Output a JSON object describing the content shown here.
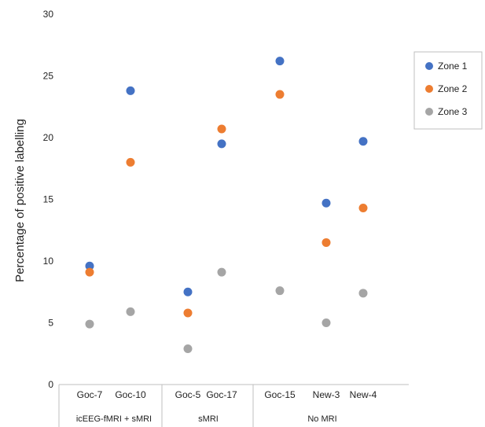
{
  "chart_data": {
    "type": "scatter",
    "ylabel": "Percentage of positive labelling",
    "xlabel": "",
    "ylim": [
      0,
      30
    ],
    "yticks": [
      0,
      5,
      10,
      15,
      20,
      25,
      30
    ],
    "grid": false,
    "legend_position": "right",
    "categories": [
      "Goc-7",
      "Goc-10",
      "Goc-5",
      "Goc-17",
      "Goc-15",
      "New-3",
      "New-4"
    ],
    "groups": [
      {
        "label": "icEEG-fMRI + sMRI",
        "categories": [
          "Goc-7",
          "Goc-10"
        ]
      },
      {
        "label": "sMRI",
        "categories": [
          "Goc-5",
          "Goc-17"
        ]
      },
      {
        "label": "No MRI",
        "categories": [
          "Goc-15",
          "New-3",
          "New-4"
        ]
      }
    ],
    "series": [
      {
        "name": "Zone 1",
        "color": "#4472C4",
        "values": [
          9.6,
          23.8,
          7.5,
          19.5,
          26.2,
          14.7,
          19.7
        ]
      },
      {
        "name": "Zone 2",
        "color": "#ED7D31",
        "values": [
          9.1,
          18.0,
          5.8,
          20.7,
          23.5,
          11.5,
          14.3
        ]
      },
      {
        "name": "Zone 3",
        "color": "#A5A5A5",
        "values": [
          4.9,
          5.9,
          2.9,
          9.1,
          7.6,
          5.0,
          7.4
        ]
      }
    ]
  }
}
